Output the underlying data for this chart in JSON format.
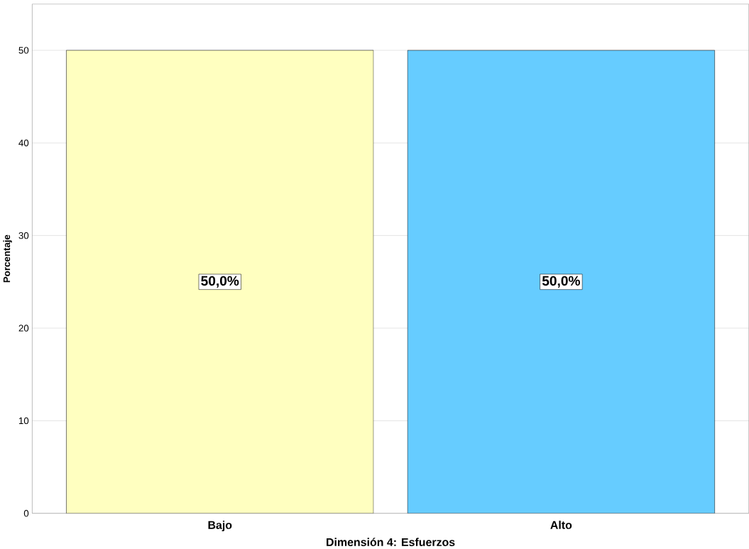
{
  "chart_data": {
    "type": "bar",
    "xlabel": "Dimensión 4: Esfuerzos",
    "ylabel": "Porcentaje",
    "categories": [
      "Bajo",
      "Alto"
    ],
    "values": [
      50.0,
      50.0
    ],
    "colors": [
      "#ffffc0",
      "#66ccff"
    ],
    "value_labels": [
      "50,0%",
      "50,0%"
    ],
    "ylim": [
      0,
      55
    ],
    "yticks": [
      0,
      10,
      20,
      30,
      40,
      50
    ],
    "grid": "y"
  }
}
